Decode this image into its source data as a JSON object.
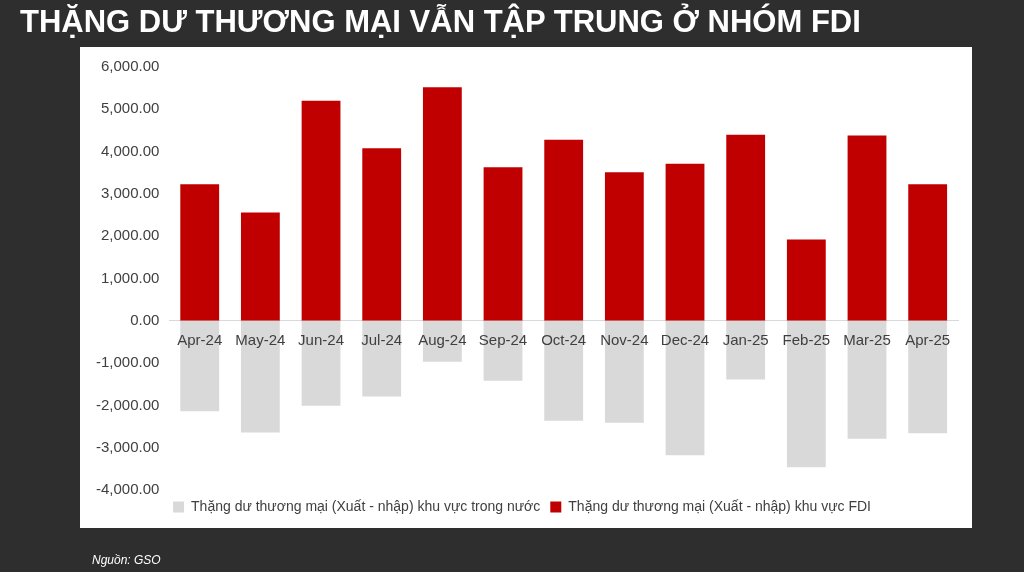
{
  "chart_data": {
    "type": "bar",
    "title": "THẶNG DƯ THƯƠNG MẠI VẪN TẬP TRUNG Ở NHÓM FDI",
    "categories": [
      "Apr-24",
      "May-24",
      "Jun-24",
      "Jul-24",
      "Aug-24",
      "Sep-24",
      "Oct-24",
      "Nov-24",
      "Dec-24",
      "Jan-25",
      "Feb-25",
      "Mar-25",
      "Apr-25"
    ],
    "series": [
      {
        "name": "Thặng dư thương mại (Xuất - nhập) khu vực trong nước",
        "color": "#d9d9d9",
        "values": [
          -2140,
          -2640,
          -2010,
          -1790,
          -970,
          -1420,
          -2360,
          -2410,
          -3180,
          -1390,
          -3460,
          -2790,
          -2660
        ]
      },
      {
        "name": "Thặng dư thương mại (Xuất - nhập) khu vực FDI",
        "color": "#c00000",
        "values": [
          3230,
          2560,
          5200,
          4080,
          5520,
          3630,
          4280,
          3510,
          3710,
          4400,
          1920,
          4380,
          3230
        ]
      }
    ],
    "stacked": true,
    "ylim": [
      -4000,
      6000
    ],
    "yticks": [
      {
        "value": -4000,
        "label": "-4,000.00"
      },
      {
        "value": -3000,
        "label": "-3,000.00"
      },
      {
        "value": -2000,
        "label": "-2,000.00"
      },
      {
        "value": -1000,
        "label": "-1,000.00"
      },
      {
        "value": 0,
        "label": "0.00"
      },
      {
        "value": 1000,
        "label": "1,000.00"
      },
      {
        "value": 2000,
        "label": "2,000.00"
      },
      {
        "value": 3000,
        "label": "3,000.00"
      },
      {
        "value": 4000,
        "label": "4,000.00"
      },
      {
        "value": 5000,
        "label": "5,000.00"
      },
      {
        "value": 6000,
        "label": "6,000.00"
      }
    ],
    "grid": false,
    "legend": "bottom",
    "annotations": [
      "Nguồn: GSO"
    ]
  }
}
